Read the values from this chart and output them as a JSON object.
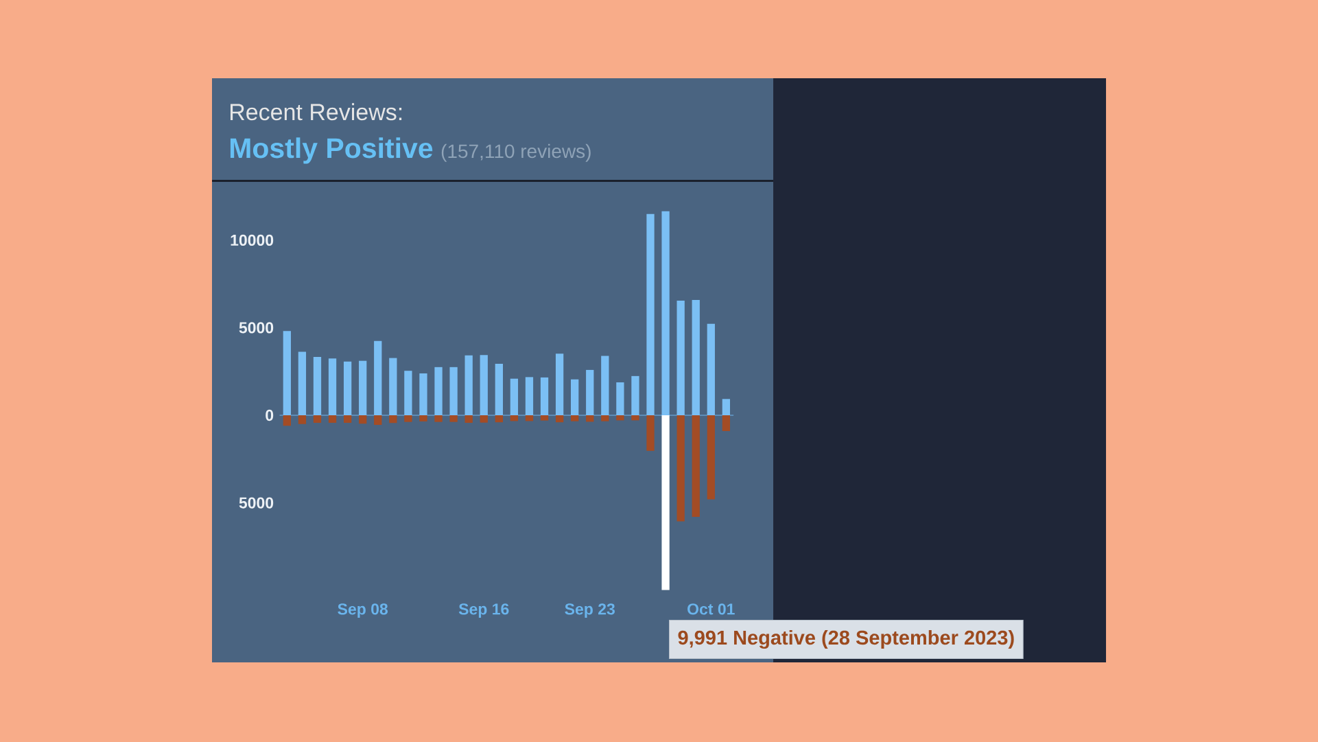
{
  "chart_data": {
    "type": "bar",
    "title": "Recent Reviews:",
    "subtitle": "Mostly Positive",
    "annotations": [
      "(157,110 reviews)",
      "9,991 Negative (28 September 2023)"
    ],
    "categories": [
      null,
      null,
      null,
      null,
      null,
      "Sep 08",
      null,
      null,
      null,
      null,
      null,
      null,
      null,
      "Sep 16",
      null,
      null,
      null,
      null,
      null,
      null,
      "Sep 23",
      null,
      null,
      null,
      null,
      null,
      null,
      null,
      "Oct 01",
      null
    ],
    "stacked": true,
    "series": [
      {
        "color": "#7bbff4",
        "values": [
          4810,
          3630,
          3330,
          3240,
          3070,
          3110,
          4240,
          3270,
          2540,
          2390,
          2750,
          2750,
          3420,
          3440,
          2940,
          2090,
          2180,
          2160,
          3520,
          2050,
          2590,
          3390,
          1880,
          2240,
          11500,
          11660,
          6550,
          6590,
          5220,
          930
        ]
      },
      {
        "colors": [
          "#a34c25",
          "#a34c25",
          "#a34c25",
          "#a34c25",
          "#a34c25",
          "#a34c25",
          "#a34c25",
          "#a34c25",
          "#a34c25",
          "#a34c25",
          "#a34c25",
          "#a34c25",
          "#a34c25",
          "#a34c25",
          "#a34c25",
          "#a34c25",
          "#a34c25",
          "#a34c25",
          "#a34c25",
          "#a34c25",
          "#a34c25",
          "#a34c25",
          "#a34c25",
          "#a34c25",
          "#a34c25",
          "#ffffff",
          "#a34c25",
          "#a34c25",
          "#a34c25",
          "#a34c25"
        ],
        "values": [
          -600,
          -500,
          -430,
          -430,
          -430,
          -480,
          -550,
          -440,
          -380,
          -350,
          -380,
          -380,
          -430,
          -420,
          -400,
          -330,
          -330,
          -300,
          -400,
          -340,
          -370,
          -340,
          -290,
          -290,
          -2030,
          -9991,
          -6060,
          -5800,
          -4800,
          -900
        ]
      }
    ],
    "ref_lines": [
      {
        "axis": "y",
        "value": 0,
        "color": "#5c8db8"
      }
    ],
    "ylim": [
      -9991,
      11660
    ],
    "yticks": [
      {
        "value": -5000,
        "label": "5000"
      },
      0,
      5000,
      10000
    ]
  }
}
